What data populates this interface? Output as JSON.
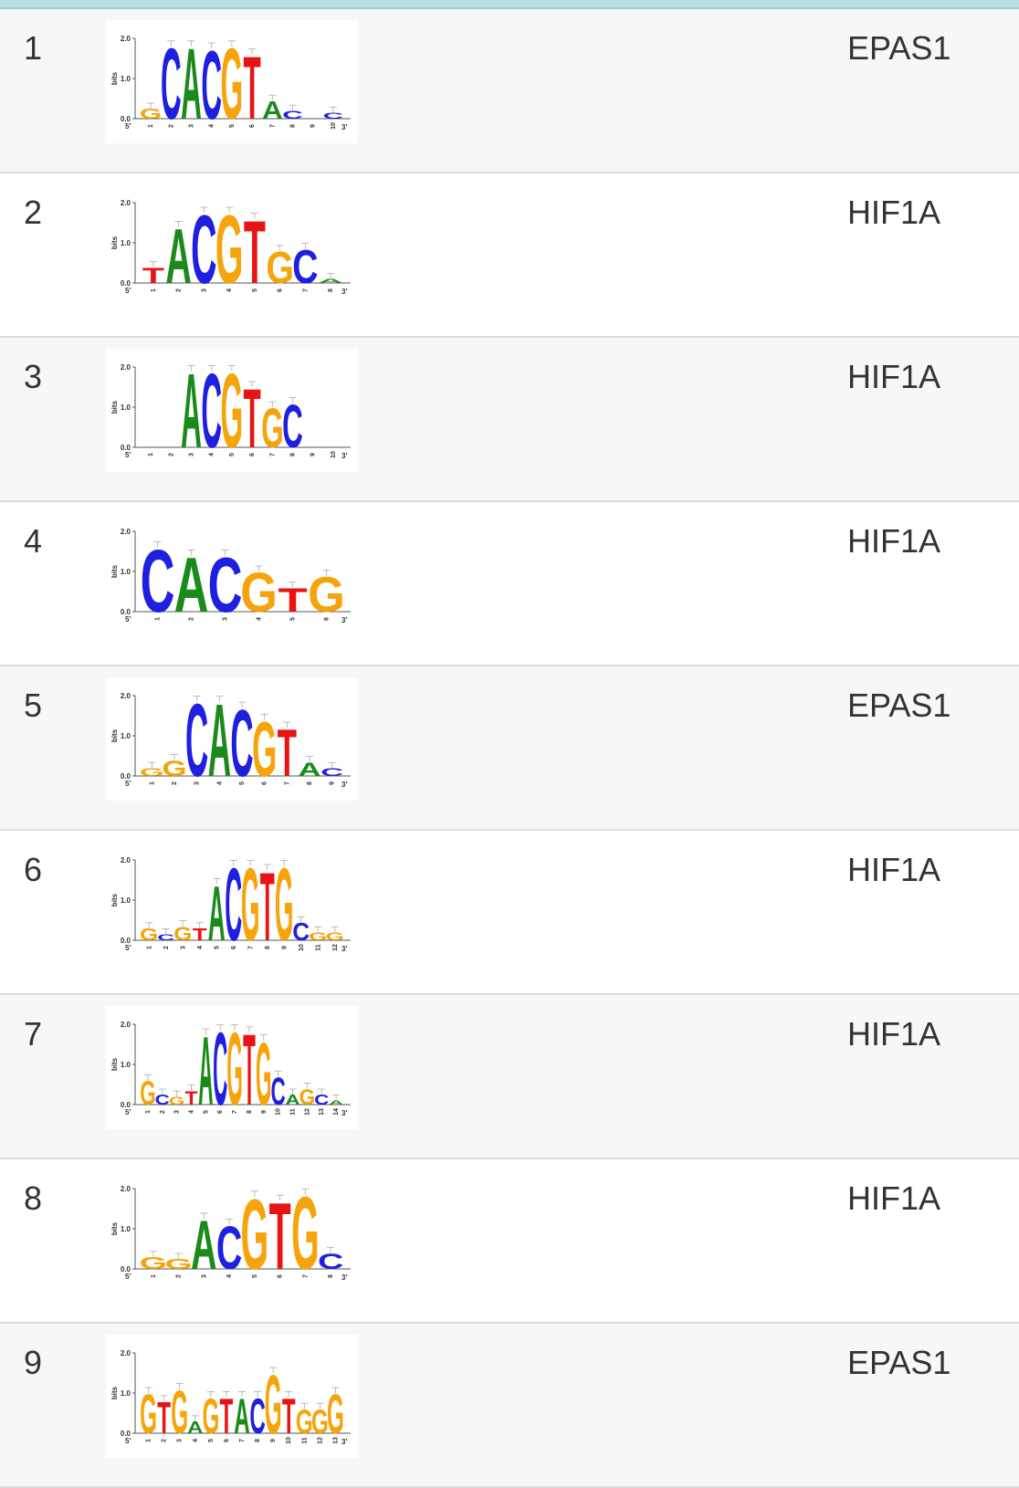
{
  "colors": {
    "A": "#1a8a1a",
    "C": "#1f1fe0",
    "G": "#f5a40c",
    "T": "#e81414"
  },
  "axis": {
    "y_label": "bits",
    "ticks": [
      "2.0",
      "1.0",
      "0.0"
    ],
    "five": "5′",
    "three": "3′"
  },
  "rows": [
    {
      "index": "1",
      "tf": "EPAS1",
      "n": 10,
      "letters": [
        {
          "pos": 1,
          "ch": "G",
          "h": 0.25
        },
        {
          "pos": 2,
          "ch": "C",
          "h": 1.8
        },
        {
          "pos": 3,
          "ch": "A",
          "h": 1.8
        },
        {
          "pos": 4,
          "ch": "C",
          "h": 1.75
        },
        {
          "pos": 5,
          "ch": "G",
          "h": 1.8
        },
        {
          "pos": 6,
          "ch": "T",
          "h": 1.6
        },
        {
          "pos": 7,
          "ch": "A",
          "h": 0.45
        },
        {
          "pos": 8,
          "ch": "C",
          "h": 0.2
        },
        {
          "pos": 10,
          "ch": "C",
          "h": 0.15
        }
      ]
    },
    {
      "index": "2",
      "tf": "HIF1A",
      "n": 8,
      "letters": [
        {
          "pos": 1,
          "ch": "T",
          "h": 0.4
        },
        {
          "pos": 2,
          "ch": "A",
          "h": 1.4
        },
        {
          "pos": 3,
          "ch": "C",
          "h": 1.75
        },
        {
          "pos": 4,
          "ch": "G",
          "h": 1.75
        },
        {
          "pos": 5,
          "ch": "T",
          "h": 1.6
        },
        {
          "pos": 6,
          "ch": "G",
          "h": 0.8
        },
        {
          "pos": 7,
          "ch": "C",
          "h": 0.85
        },
        {
          "pos": 8,
          "ch": "A",
          "h": 0.1
        }
      ]
    },
    {
      "index": "3",
      "tf": "HIF1A",
      "n": 10,
      "letters": [
        {
          "pos": 3,
          "ch": "A",
          "h": 1.9
        },
        {
          "pos": 4,
          "ch": "C",
          "h": 1.9
        },
        {
          "pos": 5,
          "ch": "G",
          "h": 1.9
        },
        {
          "pos": 6,
          "ch": "T",
          "h": 1.5
        },
        {
          "pos": 7,
          "ch": "G",
          "h": 1.0
        },
        {
          "pos": 8,
          "ch": "C",
          "h": 1.1
        }
      ]
    },
    {
      "index": "4",
      "tf": "HIF1A",
      "n": 6,
      "letters": [
        {
          "pos": 1,
          "ch": "C",
          "h": 1.6
        },
        {
          "pos": 2,
          "ch": "A",
          "h": 1.4
        },
        {
          "pos": 3,
          "ch": "C",
          "h": 1.4
        },
        {
          "pos": 4,
          "ch": "G",
          "h": 1.0
        },
        {
          "pos": 5,
          "ch": "T",
          "h": 0.6
        },
        {
          "pos": 6,
          "ch": "G",
          "h": 0.9
        }
      ]
    },
    {
      "index": "5",
      "tf": "EPAS1",
      "n": 9,
      "letters": [
        {
          "pos": 1,
          "ch": "G",
          "h": 0.2
        },
        {
          "pos": 2,
          "ch": "G",
          "h": 0.4
        },
        {
          "pos": 3,
          "ch": "C",
          "h": 1.85
        },
        {
          "pos": 4,
          "ch": "A",
          "h": 1.85
        },
        {
          "pos": 5,
          "ch": "C",
          "h": 1.7
        },
        {
          "pos": 6,
          "ch": "G",
          "h": 1.4
        },
        {
          "pos": 7,
          "ch": "T",
          "h": 1.2
        },
        {
          "pos": 8,
          "ch": "A",
          "h": 0.35
        },
        {
          "pos": 9,
          "ch": "C",
          "h": 0.2
        }
      ]
    },
    {
      "index": "6",
      "tf": "HIF1A",
      "n": 12,
      "letters": [
        {
          "pos": 1,
          "ch": "G",
          "h": 0.3
        },
        {
          "pos": 2,
          "ch": "C",
          "h": 0.15
        },
        {
          "pos": 3,
          "ch": "G",
          "h": 0.35
        },
        {
          "pos": 4,
          "ch": "T",
          "h": 0.3
        },
        {
          "pos": 5,
          "ch": "A",
          "h": 1.4
        },
        {
          "pos": 6,
          "ch": "C",
          "h": 1.85
        },
        {
          "pos": 7,
          "ch": "G",
          "h": 1.85
        },
        {
          "pos": 8,
          "ch": "T",
          "h": 1.75
        },
        {
          "pos": 9,
          "ch": "G",
          "h": 1.85
        },
        {
          "pos": 10,
          "ch": "C",
          "h": 0.45
        },
        {
          "pos": 11,
          "ch": "G",
          "h": 0.2
        },
        {
          "pos": 12,
          "ch": "G",
          "h": 0.2
        }
      ]
    },
    {
      "index": "7",
      "tf": "HIF1A",
      "n": 14,
      "letters": [
        {
          "pos": 1,
          "ch": "G",
          "h": 0.6
        },
        {
          "pos": 2,
          "ch": "C",
          "h": 0.25
        },
        {
          "pos": 3,
          "ch": "G",
          "h": 0.2
        },
        {
          "pos": 4,
          "ch": "T",
          "h": 0.35
        },
        {
          "pos": 5,
          "ch": "A",
          "h": 1.75
        },
        {
          "pos": 6,
          "ch": "C",
          "h": 1.85
        },
        {
          "pos": 7,
          "ch": "G",
          "h": 1.85
        },
        {
          "pos": 8,
          "ch": "T",
          "h": 1.8
        },
        {
          "pos": 9,
          "ch": "G",
          "h": 1.6
        },
        {
          "pos": 10,
          "ch": "C",
          "h": 0.7
        },
        {
          "pos": 11,
          "ch": "A",
          "h": 0.25
        },
        {
          "pos": 12,
          "ch": "G",
          "h": 0.4
        },
        {
          "pos": 13,
          "ch": "C",
          "h": 0.25
        },
        {
          "pos": 14,
          "ch": "A",
          "h": 0.1
        }
      ]
    },
    {
      "index": "8",
      "tf": "HIF1A",
      "n": 8,
      "letters": [
        {
          "pos": 1,
          "ch": "G",
          "h": 0.3
        },
        {
          "pos": 2,
          "ch": "G",
          "h": 0.25
        },
        {
          "pos": 3,
          "ch": "A",
          "h": 1.25
        },
        {
          "pos": 4,
          "ch": "C",
          "h": 1.1
        },
        {
          "pos": 5,
          "ch": "G",
          "h": 1.8
        },
        {
          "pos": 6,
          "ch": "T",
          "h": 1.7
        },
        {
          "pos": 7,
          "ch": "G",
          "h": 1.85
        },
        {
          "pos": 8,
          "ch": "C",
          "h": 0.4
        }
      ]
    },
    {
      "index": "9",
      "tf": "EPAS1",
      "n": 13,
      "letters": [
        {
          "pos": 1,
          "ch": "G",
          "h": 1.0
        },
        {
          "pos": 2,
          "ch": "T",
          "h": 0.8
        },
        {
          "pos": 3,
          "ch": "G",
          "h": 1.1
        },
        {
          "pos": 4,
          "ch": "A",
          "h": 0.3
        },
        {
          "pos": 5,
          "ch": "G",
          "h": 0.9
        },
        {
          "pos": 6,
          "ch": "T",
          "h": 0.9
        },
        {
          "pos": 7,
          "ch": "A",
          "h": 0.9
        },
        {
          "pos": 8,
          "ch": "C",
          "h": 0.9
        },
        {
          "pos": 9,
          "ch": "G",
          "h": 1.5
        },
        {
          "pos": 10,
          "ch": "T",
          "h": 0.9
        },
        {
          "pos": 11,
          "ch": "G",
          "h": 0.6
        },
        {
          "pos": 12,
          "ch": "G",
          "h": 0.6
        },
        {
          "pos": 13,
          "ch": "G",
          "h": 1.0
        }
      ]
    }
  ]
}
